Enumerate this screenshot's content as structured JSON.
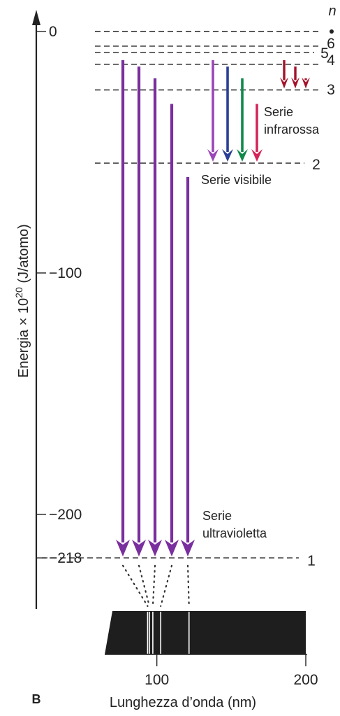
{
  "energy_axis": {
    "title": "Energia × 10^20 (J/atomo)",
    "title_main": "Energia × 10",
    "title_exp": "20",
    "title_unit": " (J/atomo)",
    "ticks": [
      {
        "value": 0,
        "label": "0"
      },
      {
        "value": -100,
        "label": "−100"
      },
      {
        "value": -200,
        "label": "−200"
      },
      {
        "value": -218,
        "label": "−218"
      }
    ]
  },
  "levels_header": "n",
  "levels": [
    {
      "n": "1",
      "energy": -218
    },
    {
      "n": "2",
      "energy": -54.5
    },
    {
      "n": "3",
      "energy": -24.2
    },
    {
      "n": "4",
      "energy": -13.6
    },
    {
      "n": "5",
      "energy": -8.72
    },
    {
      "n": "6",
      "energy": -6.06
    }
  ],
  "series": [
    {
      "label_lines": [
        "Serie",
        "ultravioletta"
      ],
      "color": "#7a2f9e",
      "lower_level": 1,
      "transitions": [
        {
          "from": 6,
          "wavelength": 93.8
        },
        {
          "from": 5,
          "wavelength": 95.0
        },
        {
          "from": 4,
          "wavelength": 97.3
        },
        {
          "from": 3,
          "wavelength": 102.6
        },
        {
          "from": 2,
          "wavelength": 121.6
        }
      ]
    },
    {
      "label_lines": [
        "Serie visibile"
      ],
      "lower_level": 2,
      "transitions": [
        {
          "from": 6,
          "color": "#9b45b8"
        },
        {
          "from": 5,
          "color": "#2a3f96"
        },
        {
          "from": 4,
          "color": "#0f8a4a"
        },
        {
          "from": 3,
          "color": "#d4245a"
        }
      ]
    },
    {
      "label_lines": [
        "Serie",
        "infrarossa"
      ],
      "color": "#a3122a",
      "lower_level": 3,
      "transitions": [
        {
          "from": 6
        },
        {
          "from": 5
        },
        {
          "from": 4
        }
      ]
    }
  ],
  "spectrum": {
    "axis_title": "Lunghezza d’onda (nm)",
    "range": [
      65,
      200
    ],
    "ticks": [
      {
        "value": 100,
        "label": "100"
      },
      {
        "value": 200,
        "label": "200"
      }
    ],
    "lines": [
      93.8,
      95.0,
      97.3,
      102.6,
      121.6
    ]
  },
  "panel_label": "B"
}
